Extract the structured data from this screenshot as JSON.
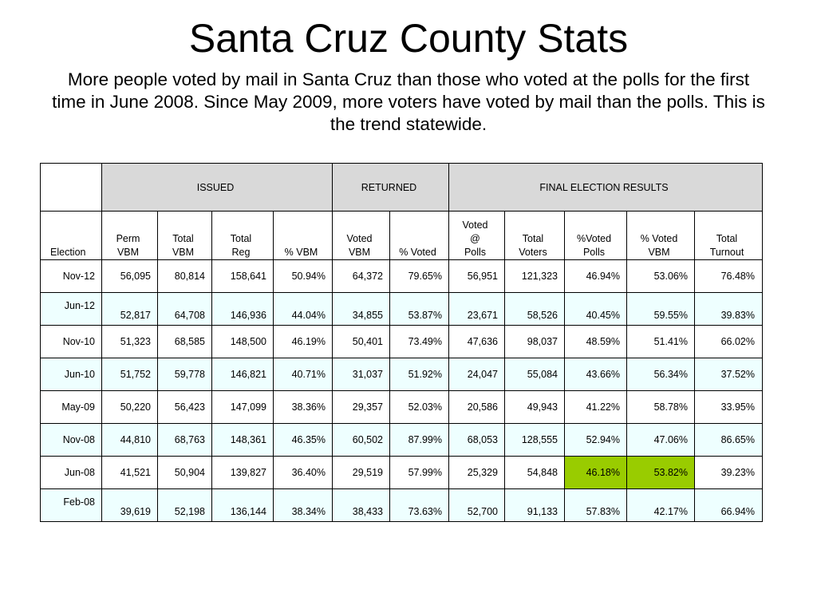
{
  "title": "Santa Cruz County Stats",
  "subtitle": "More people voted by mail in Santa Cruz than those who voted at the polls for the first time in June 2008. Since May 2009, more voters have voted by mail than the polls. This is the trend statewide.",
  "table": {
    "groups": [
      "ISSUED",
      "RETURNED",
      "FINAL ELECTION RESULTS"
    ],
    "columns": [
      [
        "Election"
      ],
      [
        "Perm",
        "VBM"
      ],
      [
        "Total",
        "VBM"
      ],
      [
        "Total",
        "Reg"
      ],
      [
        "% VBM"
      ],
      [
        "Voted",
        "VBM"
      ],
      [
        "% Voted"
      ],
      [
        "Voted",
        "@",
        "Polls"
      ],
      [
        "Total",
        "Voters"
      ],
      [
        "%Voted",
        "Polls"
      ],
      [
        "% Voted",
        "VBM"
      ],
      [
        "Total",
        "Turnout"
      ]
    ],
    "rows": [
      [
        "Nov-12",
        "56,095",
        "80,814",
        "158,641",
        "50.94%",
        "64,372",
        "79.65%",
        "56,951",
        "121,323",
        "46.94%",
        "53.06%",
        "76.48%"
      ],
      [
        "Jun-12",
        "52,817",
        "64,708",
        "146,936",
        "44.04%",
        "34,855",
        "53.87%",
        "23,671",
        "58,526",
        "40.45%",
        "59.55%",
        "39.83%"
      ],
      [
        "Nov-10",
        "51,323",
        "68,585",
        "148,500",
        "46.19%",
        "50,401",
        "73.49%",
        "47,636",
        "98,037",
        "48.59%",
        "51.41%",
        "66.02%"
      ],
      [
        "Jun-10",
        "51,752",
        "59,778",
        "146,821",
        "40.71%",
        "31,037",
        "51.92%",
        "24,047",
        "55,084",
        "43.66%",
        "56.34%",
        "37.52%"
      ],
      [
        "May-09",
        "50,220",
        "56,423",
        "147,099",
        "38.36%",
        "29,357",
        "52.03%",
        "20,586",
        "49,943",
        "41.22%",
        "58.78%",
        "33.95%"
      ],
      [
        "Nov-08",
        "44,810",
        "68,763",
        "148,361",
        "46.35%",
        "60,502",
        "87.99%",
        "68,053",
        "128,555",
        "52.94%",
        "47.06%",
        "86.65%"
      ],
      [
        "Jun-08",
        "41,521",
        "50,904",
        "139,827",
        "36.40%",
        "29,519",
        "57.99%",
        "25,329",
        "54,848",
        "46.18%",
        "53.82%",
        "39.23%"
      ],
      [
        "Feb-08",
        "39,619",
        "52,198",
        "136,144",
        "38.34%",
        "38,433",
        "73.63%",
        "52,700",
        "91,133",
        "57.83%",
        "42.17%",
        "66.94%"
      ]
    ],
    "highlight_color": "#99cc00",
    "alt_row_color": "#eeffff",
    "header_color": "#d9d9d9"
  }
}
